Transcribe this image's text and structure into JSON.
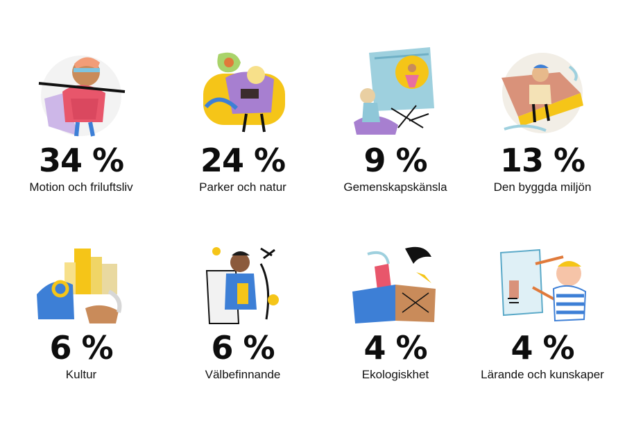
{
  "categories": [
    {
      "percent": "34 %",
      "label": "Motion och friluftsliv",
      "icon": "runner-illustration-icon"
    },
    {
      "percent": "24 %",
      "label": "Parker och natur",
      "icon": "park-reader-illustration-icon"
    },
    {
      "percent": "9 %",
      "label": "Gemenskapskänsla",
      "icon": "community-building-illustration-icon"
    },
    {
      "percent": "13 %",
      "label": "Den byggda miljön",
      "icon": "built-environment-illustration-icon"
    },
    {
      "percent": "6 %",
      "label": "Kultur",
      "icon": "culture-city-illustration-icon"
    },
    {
      "percent": "6 %",
      "label": "Välbefinnande",
      "icon": "wellbeing-illustration-icon"
    },
    {
      "percent": "4 %",
      "label": "Ekologiskhet",
      "icon": "ecology-illustration-icon"
    },
    {
      "percent": "4 %",
      "label": "Lärande och kunskaper",
      "icon": "learning-illustration-icon"
    }
  ],
  "colors": {
    "yellow": "#f5c518",
    "pink": "#e8566b",
    "purple": "#a77fd0",
    "blue": "#3d7fd6",
    "teal": "#8fc7d8",
    "dark": "#111111"
  }
}
